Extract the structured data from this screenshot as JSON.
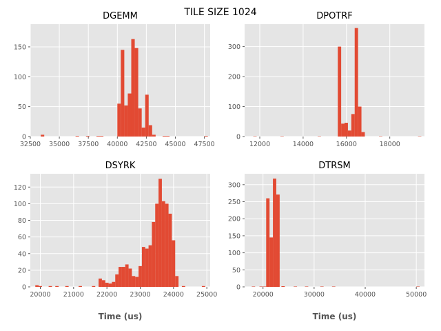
{
  "figure": {
    "suptitle": "TILE SIZE 1024"
  },
  "colors": {
    "bar": "#E24A33",
    "panel_bg": "#E5E5E5",
    "grid": "#FFFFFF",
    "tick_text": "#555555"
  },
  "chart_data": [
    {
      "type": "bar",
      "title": "DGEMM",
      "xlabel": "",
      "ylabel": "",
      "xlim": [
        32500,
        48000
      ],
      "ylim": [
        0,
        188
      ],
      "xticks": [
        32500,
        35000,
        37500,
        40000,
        42500,
        45000,
        47500
      ],
      "yticks": [
        0,
        50,
        100,
        150
      ],
      "grid": true,
      "bin_width": 300,
      "bins": [
        {
          "x": 33400,
          "count": 3
        },
        {
          "x": 36400,
          "count": 1
        },
        {
          "x": 37300,
          "count": 1
        },
        {
          "x": 38200,
          "count": 1
        },
        {
          "x": 38500,
          "count": 1
        },
        {
          "x": 40000,
          "count": 55
        },
        {
          "x": 40300,
          "count": 145
        },
        {
          "x": 40600,
          "count": 52
        },
        {
          "x": 40900,
          "count": 72
        },
        {
          "x": 41200,
          "count": 163
        },
        {
          "x": 41500,
          "count": 148
        },
        {
          "x": 41800,
          "count": 47
        },
        {
          "x": 42100,
          "count": 15
        },
        {
          "x": 42400,
          "count": 70
        },
        {
          "x": 42700,
          "count": 19
        },
        {
          "x": 43000,
          "count": 3
        },
        {
          "x": 43900,
          "count": 1
        },
        {
          "x": 44200,
          "count": 1
        },
        {
          "x": 47500,
          "count": 1
        }
      ]
    },
    {
      "type": "bar",
      "title": "DPOTRF",
      "xlabel": "",
      "ylabel": "",
      "xlim": [
        11300,
        19600
      ],
      "ylim": [
        0,
        375
      ],
      "xticks": [
        12000,
        14000,
        16000,
        18000
      ],
      "yticks": [
        0,
        100,
        200,
        300
      ],
      "grid": true,
      "bin_width": 156,
      "bins": [
        {
          "x": 11700,
          "count": 1
        },
        {
          "x": 12950,
          "count": 1
        },
        {
          "x": 14670,
          "count": 1
        },
        {
          "x": 15600,
          "count": 300
        },
        {
          "x": 15756,
          "count": 43
        },
        {
          "x": 15912,
          "count": 46
        },
        {
          "x": 16068,
          "count": 20
        },
        {
          "x": 16224,
          "count": 75
        },
        {
          "x": 16380,
          "count": 362
        },
        {
          "x": 16536,
          "count": 100
        },
        {
          "x": 16692,
          "count": 15
        },
        {
          "x": 17500,
          "count": 1
        },
        {
          "x": 19300,
          "count": 1
        }
      ]
    },
    {
      "type": "bar",
      "title": "DSYRK",
      "xlabel": "Time (us)",
      "ylabel": "",
      "xlim": [
        19700,
        25100
      ],
      "ylim": [
        0,
        136
      ],
      "xticks": [
        20000,
        21000,
        22000,
        23000,
        24000,
        25000
      ],
      "yticks": [
        0,
        20,
        40,
        60,
        80,
        100,
        120
      ],
      "grid": true,
      "bin_width": 100,
      "bins": [
        {
          "x": 19850,
          "count": 2
        },
        {
          "x": 19950,
          "count": 1
        },
        {
          "x": 20250,
          "count": 1
        },
        {
          "x": 20450,
          "count": 1
        },
        {
          "x": 20750,
          "count": 1
        },
        {
          "x": 21150,
          "count": 1
        },
        {
          "x": 21550,
          "count": 1
        },
        {
          "x": 21750,
          "count": 10
        },
        {
          "x": 21850,
          "count": 8
        },
        {
          "x": 21950,
          "count": 5
        },
        {
          "x": 22050,
          "count": 4
        },
        {
          "x": 22150,
          "count": 6
        },
        {
          "x": 22250,
          "count": 15
        },
        {
          "x": 22350,
          "count": 24
        },
        {
          "x": 22450,
          "count": 24
        },
        {
          "x": 22550,
          "count": 27
        },
        {
          "x": 22650,
          "count": 22
        },
        {
          "x": 22750,
          "count": 13
        },
        {
          "x": 22850,
          "count": 12
        },
        {
          "x": 22950,
          "count": 25
        },
        {
          "x": 23050,
          "count": 48
        },
        {
          "x": 23150,
          "count": 46
        },
        {
          "x": 23250,
          "count": 50
        },
        {
          "x": 23350,
          "count": 78
        },
        {
          "x": 23450,
          "count": 100
        },
        {
          "x": 23550,
          "count": 130
        },
        {
          "x": 23650,
          "count": 103
        },
        {
          "x": 23750,
          "count": 100
        },
        {
          "x": 23850,
          "count": 88
        },
        {
          "x": 23950,
          "count": 56
        },
        {
          "x": 24050,
          "count": 13
        },
        {
          "x": 24250,
          "count": 1
        },
        {
          "x": 24850,
          "count": 1
        }
      ]
    },
    {
      "type": "bar",
      "title": "DTRSM",
      "xlabel": "Time (us)",
      "ylabel": "",
      "xlim": [
        16400,
        51600
      ],
      "ylim": [
        0,
        332
      ],
      "xticks": [
        20000,
        30000,
        40000,
        50000
      ],
      "yticks": [
        0,
        50,
        100,
        150,
        200,
        250,
        300
      ],
      "grid": true,
      "bin_width": 660,
      "bins": [
        {
          "x": 17800,
          "count": 1
        },
        {
          "x": 19300,
          "count": 1
        },
        {
          "x": 19960,
          "count": 1
        },
        {
          "x": 20620,
          "count": 260
        },
        {
          "x": 21280,
          "count": 145
        },
        {
          "x": 21940,
          "count": 318
        },
        {
          "x": 22600,
          "count": 271
        },
        {
          "x": 23600,
          "count": 2
        },
        {
          "x": 26000,
          "count": 1
        },
        {
          "x": 28200,
          "count": 1
        },
        {
          "x": 31200,
          "count": 1
        },
        {
          "x": 33500,
          "count": 1
        },
        {
          "x": 50000,
          "count": 1
        }
      ]
    }
  ]
}
